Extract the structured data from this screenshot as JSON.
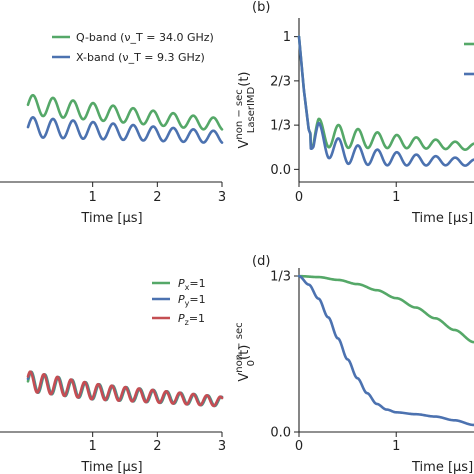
{
  "colors": {
    "green": "#55a868",
    "blue": "#4c72b0",
    "red": "#c44e52"
  },
  "chart_data": [
    {
      "panel": "a",
      "type": "line",
      "xlabel": "Time [μs]",
      "ylabel": "",
      "xlim": [
        0,
        3
      ],
      "xticks": [
        {
          "v": 1,
          "label": "1"
        },
        {
          "v": 2,
          "label": "2"
        },
        {
          "v": 3,
          "label": "3"
        }
      ],
      "yticks": [],
      "legend": "top-right",
      "series": [
        {
          "name": "Q-band (ν_T = 34.0 GHz)",
          "color": "#55a868",
          "x": [
            0,
            0.3,
            0.6,
            0.9,
            1.2,
            1.5,
            1.8,
            2.1,
            2.4,
            2.7,
            3.0
          ],
          "y": [
            0.38,
            0.37,
            0.36,
            0.35,
            0.34,
            0.33,
            0.32,
            0.31,
            0.3,
            0.29,
            0.285
          ]
        },
        {
          "name": "X-band (ν_T = 9.3 GHz)",
          "color": "#4c72b0",
          "x": [
            0,
            0.3,
            0.6,
            0.9,
            1.2,
            1.5,
            1.8,
            2.1,
            2.4,
            2.7,
            3.0
          ],
          "y": [
            0.27,
            0.265,
            0.26,
            0.255,
            0.25,
            0.245,
            0.24,
            0.235,
            0.23,
            0.225,
            0.22
          ]
        }
      ]
    },
    {
      "panel": "b",
      "type": "line",
      "label": "(b)",
      "xlabel": "Time [μs]",
      "ylabel_main": "V",
      "ylabel_sup": "non − sec",
      "ylabel_sub": "LaserIMD",
      "ylabel_arg": "(t)",
      "xlim": [
        0,
        1.8
      ],
      "ylim": [
        -0.05,
        1.05
      ],
      "xticks": [
        {
          "v": 0,
          "label": "0"
        },
        {
          "v": 1,
          "label": "1"
        }
      ],
      "yticks": [
        {
          "v": 0,
          "label": "0.0"
        },
        {
          "v": 0.3333,
          "label": "1/3"
        },
        {
          "v": 0.6667,
          "label": "2/3"
        },
        {
          "v": 1,
          "label": "1"
        }
      ],
      "series": [
        {
          "name": "",
          "color": "#55a868",
          "x": [
            0,
            0.05,
            0.1,
            0.15,
            0.2,
            0.3,
            0.5,
            0.8,
            1.2,
            1.6,
            1.8
          ],
          "y": [
            1.0,
            0.6,
            0.3,
            0.22,
            0.28,
            0.26,
            0.24,
            0.22,
            0.2,
            0.18,
            0.17
          ]
        },
        {
          "name": "",
          "color": "#4c72b0",
          "x": [
            0,
            0.05,
            0.1,
            0.15,
            0.2,
            0.3,
            0.5,
            0.8,
            1.2,
            1.6,
            1.8
          ],
          "y": [
            1.0,
            0.6,
            0.3,
            0.2,
            0.25,
            0.18,
            0.12,
            0.09,
            0.07,
            0.06,
            0.05
          ]
        }
      ]
    },
    {
      "panel": "c",
      "type": "line",
      "xlabel": "Time [μs]",
      "ylabel": "",
      "xlim": [
        0,
        3
      ],
      "xticks": [
        {
          "v": 1,
          "label": "1"
        },
        {
          "v": 2,
          "label": "2"
        },
        {
          "v": 3,
          "label": "3"
        }
      ],
      "yticks": [],
      "legend": "right",
      "series": [
        {
          "name": "P_x=1",
          "color": "#55a868",
          "x": [
            0,
            0.5,
            1.0,
            1.5,
            2.0,
            2.5,
            3.0
          ],
          "y": [
            0.2,
            0.18,
            0.16,
            0.15,
            0.14,
            0.13,
            0.12
          ]
        },
        {
          "name": "P_y=1",
          "color": "#4c72b0",
          "x": [
            0,
            0.5,
            1.0,
            1.5,
            2.0,
            2.5,
            3.0
          ],
          "y": [
            0.2,
            0.18,
            0.16,
            0.15,
            0.14,
            0.13,
            0.12
          ]
        },
        {
          "name": "P_z=1",
          "color": "#c44e52",
          "x": [
            0,
            0.5,
            1.0,
            1.5,
            2.0,
            2.5,
            3.0
          ],
          "y": [
            0.2,
            0.18,
            0.16,
            0.15,
            0.14,
            0.13,
            0.12
          ]
        }
      ]
    },
    {
      "panel": "d",
      "type": "line",
      "label": "(d)",
      "xlabel": "Time [μs]",
      "ylabel_main": "V",
      "ylabel_sup": "non − sec",
      "ylabel_sub": "0",
      "ylabel_arg": "(t)",
      "xlim": [
        0,
        1.8
      ],
      "ylim": [
        0,
        0.3333
      ],
      "xticks": [
        {
          "v": 0,
          "label": "0"
        },
        {
          "v": 1,
          "label": "1"
        }
      ],
      "yticks": [
        {
          "v": 0,
          "label": "0.0"
        },
        {
          "v": 0.3333,
          "label": "1/3"
        }
      ],
      "series": [
        {
          "name": "",
          "color": "#55a868",
          "x": [
            0,
            0.2,
            0.4,
            0.6,
            0.8,
            1.0,
            1.2,
            1.4,
            1.6,
            1.8
          ],
          "y": [
            0.333,
            0.331,
            0.325,
            0.316,
            0.303,
            0.286,
            0.266,
            0.243,
            0.218,
            0.192
          ]
        },
        {
          "name": "",
          "color": "#4c72b0",
          "x": [
            0,
            0.1,
            0.2,
            0.3,
            0.4,
            0.5,
            0.6,
            0.7,
            0.8,
            0.9,
            1.0,
            1.2,
            1.4,
            1.6,
            1.8
          ],
          "y": [
            0.333,
            0.315,
            0.285,
            0.245,
            0.2,
            0.155,
            0.115,
            0.083,
            0.06,
            0.048,
            0.042,
            0.038,
            0.033,
            0.025,
            0.015
          ]
        }
      ]
    }
  ]
}
